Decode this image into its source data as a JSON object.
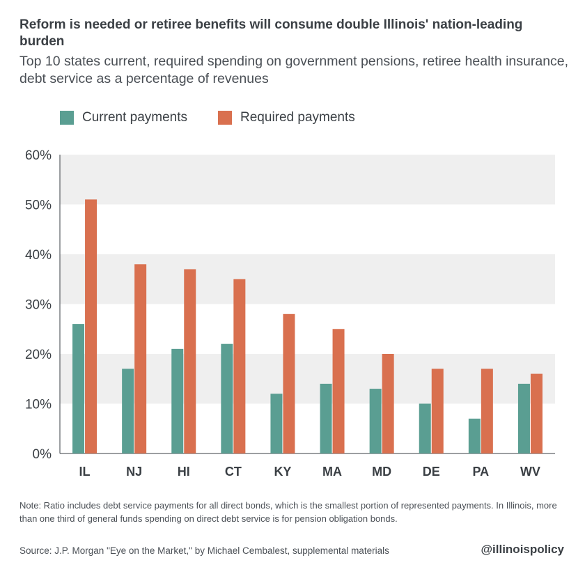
{
  "header": {
    "title": "Reform is needed or retiree benefits will consume double Illinois' nation-leading burden",
    "subtitle": "Top 10 states current, required spending on government pensions, retiree health insurance, debt service as a percentage of revenues"
  },
  "legend": {
    "current_label": "Current payments",
    "required_label": "Required payments"
  },
  "colors": {
    "current": "#5a9e92",
    "required": "#d9704f",
    "band": "#efefef",
    "axis": "#3a3f44"
  },
  "chart_data": {
    "type": "bar",
    "categories": [
      "IL",
      "NJ",
      "HI",
      "CT",
      "KY",
      "MA",
      "MD",
      "DE",
      "PA",
      "WV"
    ],
    "series": [
      {
        "name": "Current payments",
        "values": [
          26,
          17,
          21,
          22,
          12,
          14,
          13,
          10,
          7,
          14
        ]
      },
      {
        "name": "Required payments",
        "values": [
          51,
          38,
          37,
          35,
          28,
          25,
          20,
          17,
          17,
          16
        ]
      }
    ],
    "ylim": [
      0,
      60
    ],
    "yticks": [
      0,
      10,
      20,
      30,
      40,
      50,
      60
    ],
    "ytick_labels": [
      "0%",
      "10%",
      "20%",
      "30%",
      "40%",
      "50%",
      "60%"
    ],
    "grid": "alternating bands",
    "legend_position": "top-left"
  },
  "footer": {
    "note": "Note: Ratio includes debt service payments for all direct bonds, which is the smallest portion of represented payments. In Illinois, more than one third of general funds spending on direct debt service is for pension obligation bonds.",
    "source": "Source:  J.P. Morgan \"Eye on the Market,\" by Michael Cembalest, supplemental materials",
    "handle": "@illinoispolicy"
  }
}
